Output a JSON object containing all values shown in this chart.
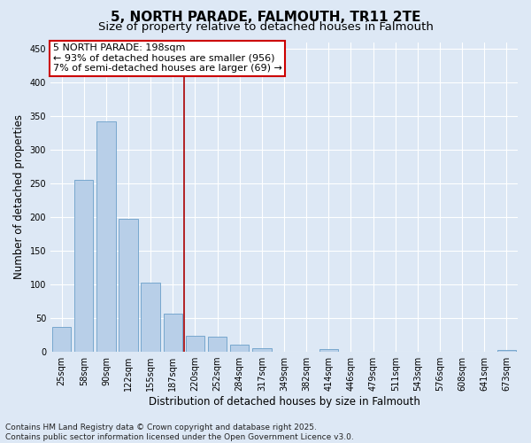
{
  "title": "5, NORTH PARADE, FALMOUTH, TR11 2TE",
  "subtitle": "Size of property relative to detached houses in Falmouth",
  "xlabel": "Distribution of detached houses by size in Falmouth",
  "ylabel": "Number of detached properties",
  "categories": [
    "25sqm",
    "58sqm",
    "90sqm",
    "122sqm",
    "155sqm",
    "187sqm",
    "220sqm",
    "252sqm",
    "284sqm",
    "317sqm",
    "349sqm",
    "382sqm",
    "414sqm",
    "446sqm",
    "479sqm",
    "511sqm",
    "543sqm",
    "576sqm",
    "608sqm",
    "641sqm",
    "673sqm"
  ],
  "values": [
    37,
    256,
    342,
    198,
    103,
    57,
    24,
    22,
    11,
    5,
    0,
    0,
    4,
    0,
    0,
    0,
    0,
    0,
    0,
    0,
    3
  ],
  "bar_color": "#b8cfe8",
  "bar_edge_color": "#6a9fc8",
  "vline_x_index": 5.5,
  "vline_color": "#aa0000",
  "annotation_text_line1": "5 NORTH PARADE: 198sqm",
  "annotation_text_line2": "← 93% of detached houses are smaller (956)",
  "annotation_text_line3": "7% of semi-detached houses are larger (69) →",
  "annotation_box_color": "#cc0000",
  "footer_text": "Contains HM Land Registry data © Crown copyright and database right 2025.\nContains public sector information licensed under the Open Government Licence v3.0.",
  "ylim": [
    0,
    460
  ],
  "yticks": [
    0,
    50,
    100,
    150,
    200,
    250,
    300,
    350,
    400,
    450
  ],
  "background_color": "#dde8f5",
  "plot_background_color": "#dde8f5",
  "title_fontsize": 11,
  "subtitle_fontsize": 9.5,
  "ylabel_fontsize": 8.5,
  "xlabel_fontsize": 8.5,
  "tick_fontsize": 7,
  "annotation_fontsize": 8,
  "footer_fontsize": 6.5
}
